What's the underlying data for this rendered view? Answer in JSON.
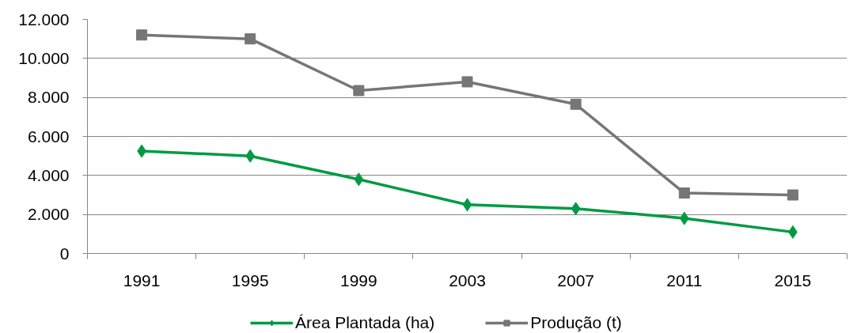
{
  "chart_data": {
    "type": "line",
    "categories": [
      "1991",
      "1995",
      "1999",
      "2003",
      "2007",
      "2011",
      "2015"
    ],
    "series": [
      {
        "name": "Área Plantada (ha)",
        "color": "#009a44",
        "marker": "diamond",
        "values": [
          5250,
          5000,
          3800,
          2500,
          2300,
          1800,
          1100
        ]
      },
      {
        "name": "Produção (t)",
        "color": "#767676",
        "marker": "square",
        "values": [
          11200,
          11000,
          8350,
          8800,
          7650,
          3100,
          3000
        ]
      }
    ],
    "ylim": [
      0,
      12000
    ],
    "yticks": [
      0,
      {
        "value": 2000,
        "label": "2.000"
      },
      {
        "value": 4000,
        "label": "4.000"
      },
      {
        "value": 6000,
        "label": "6.000"
      },
      {
        "value": 8000,
        "label": "8.000"
      },
      {
        "value": 10000,
        "label": "10.000"
      },
      {
        "value": 12000,
        "label": "12.000"
      }
    ],
    "grid": "y",
    "legend": "bottom",
    "line_style": "solid"
  }
}
